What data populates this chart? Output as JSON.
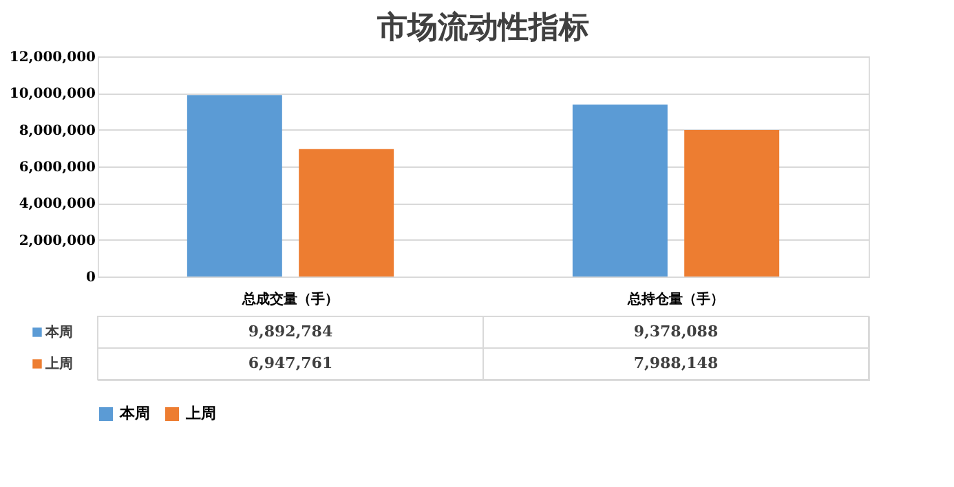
{
  "chart_data": {
    "type": "bar",
    "title": "市场流动性指标",
    "categories": [
      "总成交量（手）",
      "总持仓量（手）"
    ],
    "series": [
      {
        "name": "本周",
        "color": "#5b9bd5",
        "values": [
          9892784,
          9378088
        ],
        "value_labels": [
          "9,892,784",
          "9,378,088"
        ]
      },
      {
        "name": "上周",
        "color": "#ed7d31",
        "values": [
          6947761,
          7988148
        ],
        "value_labels": [
          "6,947,761",
          "7,988,148"
        ]
      }
    ],
    "ylim": [
      0,
      12000000
    ],
    "yticks": [
      {
        "value": 0,
        "label": "0"
      },
      {
        "value": 2000000,
        "label": "2,000,000"
      },
      {
        "value": 4000000,
        "label": "4,000,000"
      },
      {
        "value": 6000000,
        "label": "6,000,000"
      },
      {
        "value": 8000000,
        "label": "8,000,000"
      },
      {
        "value": 10000000,
        "label": "10,000,000"
      },
      {
        "value": 12000000,
        "label": "12,000,000"
      }
    ],
    "grid": "y",
    "legend": "bottom"
  }
}
